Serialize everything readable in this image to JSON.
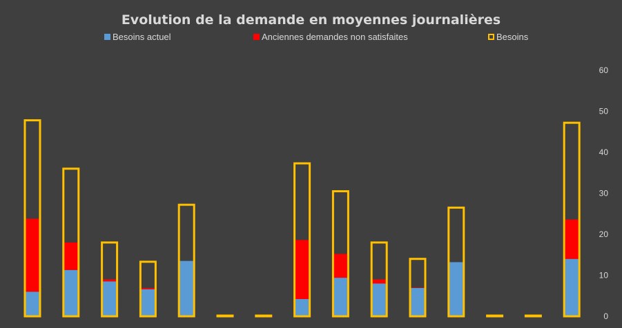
{
  "chart_data": {
    "type": "bar",
    "title": "Evolution de la demande en moyennes journalières",
    "xlabel": "",
    "ylabel": "",
    "ylim": [
      0,
      60
    ],
    "yticks": [
      "0",
      "10",
      "20",
      "30",
      "40",
      "50",
      "60"
    ],
    "y_axis_position": "right",
    "legend_position": "top",
    "grid": false,
    "categories": [
      "",
      "",
      "",
      "",
      "",
      "",
      "",
      "",
      "",
      "",
      "",
      "",
      "",
      "",
      ""
    ],
    "series": [
      {
        "name": "Besoins actuel",
        "kind": "stacked-bar",
        "color": "#5b9bd5",
        "values": [
          6,
          11.3,
          8.5,
          6.6,
          13.5,
          0,
          0,
          4.2,
          9.4,
          8,
          6.9,
          13.2,
          0,
          0,
          14
        ]
      },
      {
        "name": "Anciennes demandes non satisfaites",
        "kind": "stacked-bar",
        "color": "#ff0000",
        "values": [
          17.8,
          6.7,
          0.5,
          0.3,
          0,
          0,
          0,
          14.4,
          5.8,
          1,
          0.1,
          0,
          0,
          0,
          9.6
        ]
      },
      {
        "name": "Besoins",
        "kind": "outline-bar",
        "color": "#ffc000",
        "values": [
          47.8,
          36,
          18,
          13.3,
          27.2,
          0,
          0,
          37.3,
          30.5,
          18,
          14,
          26.5,
          0,
          0,
          47.2
        ]
      }
    ]
  }
}
